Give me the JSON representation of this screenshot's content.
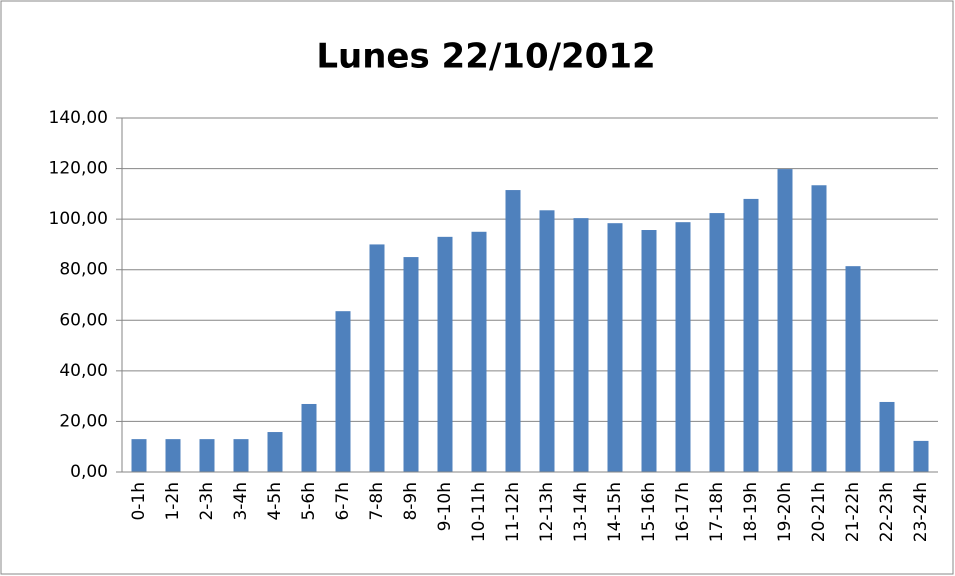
{
  "chart_data": {
    "type": "bar",
    "title": "Lunes 22/10/2012",
    "categories": [
      "0-1h",
      "1-2h",
      "2-3h",
      "3-4h",
      "4-5h",
      "5-6h",
      "6-7h",
      "7-8h",
      "8-9h",
      "9-10h",
      "10-11h",
      "11-12h",
      "12-13h",
      "13-14h",
      "14-15h",
      "15-16h",
      "16-17h",
      "17-18h",
      "18-19h",
      "19-20h",
      "20-21h",
      "21-22h",
      "22-23h",
      "23-24h"
    ],
    "values": [
      13,
      13,
      13,
      13,
      15.8,
      26.9,
      63.6,
      90,
      85,
      93,
      95,
      111.5,
      103.5,
      100.4,
      98.4,
      95.7,
      98.8,
      102.4,
      108,
      119.8,
      113.4,
      81.4,
      27.7,
      12.3
    ],
    "color": "#4f81bd",
    "ylim": [
      0,
      140
    ],
    "yticks": [
      {
        "value": 0,
        "label": "0,00"
      },
      {
        "value": 20,
        "label": "20,00"
      },
      {
        "value": 40,
        "label": "40,00"
      },
      {
        "value": 60,
        "label": "60,00"
      },
      {
        "value": 80,
        "label": "80,00"
      },
      {
        "value": 100,
        "label": "100,00"
      },
      {
        "value": 120,
        "label": "120,00"
      },
      {
        "value": 140,
        "label": "140,00"
      }
    ],
    "grid": true
  }
}
